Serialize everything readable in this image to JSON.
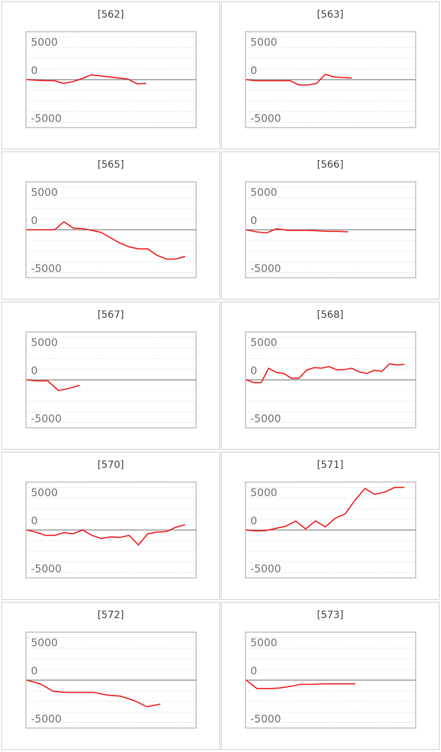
{
  "style": {
    "line_color": "#ee1111",
    "frame_color": "#bfbfbf",
    "grid_color": "#dddddd",
    "zero_line_color": "#808080",
    "tick_label_color": "#707070"
  },
  "charts": [
    {
      "id": "562",
      "label": "[562]",
      "chart_data": {
        "type": "line",
        "yticks": [
          5000,
          0,
          -5000
        ],
        "ylim": [
          -9000,
          9000
        ],
        "grid": true,
        "y": [
          0,
          -100,
          -200,
          -200,
          -700,
          -400,
          200,
          900,
          700,
          500,
          300,
          100,
          -800,
          -700
        ]
      }
    },
    {
      "id": "563",
      "label": "[563]",
      "chart_data": {
        "type": "line",
        "yticks": [
          5000,
          0,
          -5000
        ],
        "ylim": [
          -9000,
          9000
        ],
        "grid": true,
        "y": [
          0,
          -200,
          -200,
          -200,
          -200,
          -200,
          -1000,
          -1000,
          -700,
          1000,
          500,
          400,
          300
        ]
      }
    },
    {
      "id": "565",
      "label": "[565]",
      "chart_data": {
        "type": "line",
        "yticks": [
          5000,
          0,
          -5000
        ],
        "ylim": [
          -9000,
          9000
        ],
        "grid": true,
        "y": [
          0,
          0,
          0,
          0,
          1500,
          300,
          200,
          -100,
          -500,
          -1500,
          -2500,
          -3200,
          -3600,
          -3600,
          -4800,
          -5500,
          -5500,
          -5000
        ]
      }
    },
    {
      "id": "566",
      "label": "[566]",
      "chart_data": {
        "type": "line",
        "yticks": [
          5000,
          0,
          -5000
        ],
        "ylim": [
          -9000,
          9000
        ],
        "grid": true,
        "y": [
          0,
          -400,
          -600,
          200,
          -100,
          -100,
          -100,
          -200,
          -300,
          -300,
          -400
        ]
      }
    },
    {
      "id": "567",
      "label": "[567]",
      "chart_data": {
        "type": "line",
        "yticks": [
          5000,
          0,
          -5000
        ],
        "ylim": [
          -9000,
          9000
        ],
        "grid": true,
        "y": [
          0,
          -200,
          -200,
          -2000,
          -1600,
          -1000
        ]
      }
    },
    {
      "id": "568",
      "label": "[568]",
      "chart_data": {
        "type": "line",
        "yticks": [
          5000,
          0,
          -5000
        ],
        "ylim": [
          -9000,
          9000
        ],
        "grid": true,
        "y": [
          0,
          -500,
          -500,
          2200,
          1400,
          1200,
          300,
          300,
          1800,
          2300,
          2200,
          2500,
          1900,
          1900,
          2200,
          1500,
          1200,
          1800,
          1600,
          3000,
          2800,
          2900
        ]
      }
    },
    {
      "id": "570",
      "label": "[570]",
      "chart_data": {
        "type": "line",
        "yticks": [
          5000,
          0,
          -5000
        ],
        "ylim": [
          -9000,
          9000
        ],
        "grid": true,
        "y": [
          0,
          -400,
          -1000,
          -1000,
          -500,
          -700,
          0,
          -1000,
          -1600,
          -1300,
          -1400,
          -1000,
          -2800,
          -700,
          -400,
          -300,
          500,
          1000
        ]
      }
    },
    {
      "id": "571",
      "label": "[571]",
      "chart_data": {
        "type": "line",
        "yticks": [
          5000,
          0,
          -5000
        ],
        "ylim": [
          -9000,
          9000
        ],
        "grid": true,
        "y": [
          0,
          -200,
          -100,
          300,
          700,
          1700,
          200,
          1700,
          600,
          2200,
          3000,
          5600,
          7800,
          6700,
          7100,
          8000,
          8000
        ]
      }
    },
    {
      "id": "572",
      "label": "[572]",
      "chart_data": {
        "type": "line",
        "yticks": [
          5000,
          0,
          -5000
        ],
        "ylim": [
          -9000,
          9000
        ],
        "grid": true,
        "y": [
          0,
          -700,
          -2100,
          -2300,
          -2300,
          -2300,
          -2800,
          -3000,
          -3800,
          -5000,
          -4500
        ]
      }
    },
    {
      "id": "573",
      "label": "[573]",
      "chart_data": {
        "type": "line",
        "yticks": [
          5000,
          0,
          -5000
        ],
        "ylim": [
          -9000,
          9000
        ],
        "grid": true,
        "y": [
          0,
          -1600,
          -1600,
          -1500,
          -1200,
          -800,
          -800,
          -700,
          -700,
          -700,
          -700
        ]
      }
    }
  ]
}
